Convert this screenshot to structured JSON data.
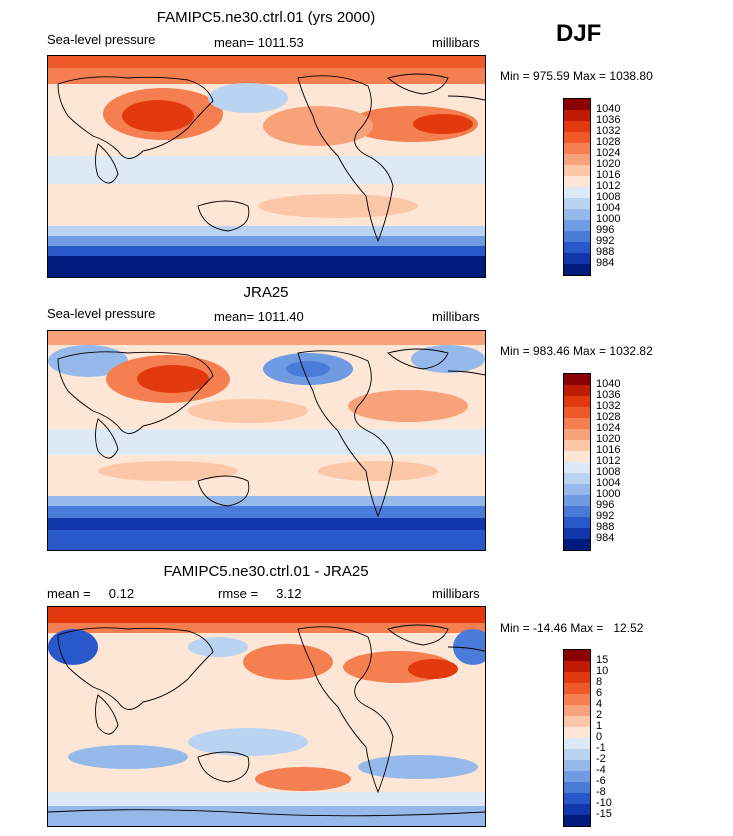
{
  "season": "DJF",
  "panels": [
    {
      "title": "FAMIPC5.ne30.ctrl.01 (yrs 2000)",
      "left_label": "Sea-level pressure",
      "center_label": "mean= 1011.53",
      "right_label": "millibars",
      "min_max": "Min = 975.59 Max = 1038.80",
      "colorbar": {
        "labels": [
          "1040",
          "1036",
          "1032",
          "1028",
          "1024",
          "1020",
          "1016",
          "1012",
          "1008",
          "1004",
          "1000",
          "996",
          "992",
          "988",
          "984"
        ],
        "colors": [
          "#8b0000",
          "#c01a00",
          "#e23a0e",
          "#f05a28",
          "#f57f50",
          "#f8a27c",
          "#fbc7a8",
          "#fde6d6",
          "#dde9f7",
          "#b9d3f1",
          "#94b9ea",
          "#6f9be2",
          "#4a7bd9",
          "#2958cb",
          "#1237ad",
          "#001a7e"
        ]
      },
      "chart_data": {
        "type": "heatmap",
        "variable": "Sea-level pressure",
        "units": "millibars",
        "mean": 1011.53,
        "min": 975.59,
        "max": 1038.8,
        "contour_levels": [
          984,
          988,
          992,
          996,
          1000,
          1004,
          1008,
          1012,
          1016,
          1020,
          1024,
          1028,
          1032,
          1036,
          1040
        ]
      }
    },
    {
      "title": "JRA25",
      "left_label": "Sea-level pressure",
      "center_label": "mean= 1011.40",
      "right_label": "millibars",
      "min_max": "Min = 983.46 Max = 1032.82",
      "colorbar": {
        "labels": [
          "1040",
          "1036",
          "1032",
          "1028",
          "1024",
          "1020",
          "1016",
          "1012",
          "1008",
          "1004",
          "1000",
          "996",
          "992",
          "988",
          "984"
        ],
        "colors": [
          "#8b0000",
          "#c01a00",
          "#e23a0e",
          "#f05a28",
          "#f57f50",
          "#f8a27c",
          "#fbc7a8",
          "#fde6d6",
          "#dde9f7",
          "#b9d3f1",
          "#94b9ea",
          "#6f9be2",
          "#4a7bd9",
          "#2958cb",
          "#1237ad",
          "#001a7e"
        ]
      },
      "chart_data": {
        "type": "heatmap",
        "variable": "Sea-level pressure",
        "units": "millibars",
        "mean": 1011.4,
        "min": 983.46,
        "max": 1032.82,
        "contour_levels": [
          984,
          988,
          992,
          996,
          1000,
          1004,
          1008,
          1012,
          1016,
          1020,
          1024,
          1028,
          1032,
          1036,
          1040
        ]
      }
    },
    {
      "title": "FAMIPC5.ne30.ctrl.01 - JRA25",
      "left_label": "mean =     0.12",
      "center_label": "rmse =     3.12",
      "right_label": "millibars",
      "min_max": "Min = -14.46 Max =   12.52",
      "colorbar": {
        "labels": [
          "15",
          "10",
          "8",
          "6",
          "4",
          "2",
          "1",
          "0",
          "-1",
          "-2",
          "-4",
          "-6",
          "-8",
          "-10",
          "-15"
        ],
        "colors": [
          "#8b0000",
          "#c01a00",
          "#e23a0e",
          "#f05a28",
          "#f57f50",
          "#f8a27c",
          "#fbc7a8",
          "#fde6d6",
          "#dde9f7",
          "#b9d3f1",
          "#94b9ea",
          "#6f9be2",
          "#4a7bd9",
          "#2958cb",
          "#1237ad",
          "#001a7e"
        ]
      },
      "chart_data": {
        "type": "heatmap",
        "variable": "Sea-level pressure difference",
        "units": "millibars",
        "mean": 0.12,
        "rmse": 3.12,
        "min": -14.46,
        "max": 12.52,
        "contour_levels": [
          -15,
          -10,
          -8,
          -6,
          -4,
          -2,
          -1,
          0,
          1,
          2,
          4,
          6,
          8,
          10,
          15
        ]
      }
    }
  ]
}
